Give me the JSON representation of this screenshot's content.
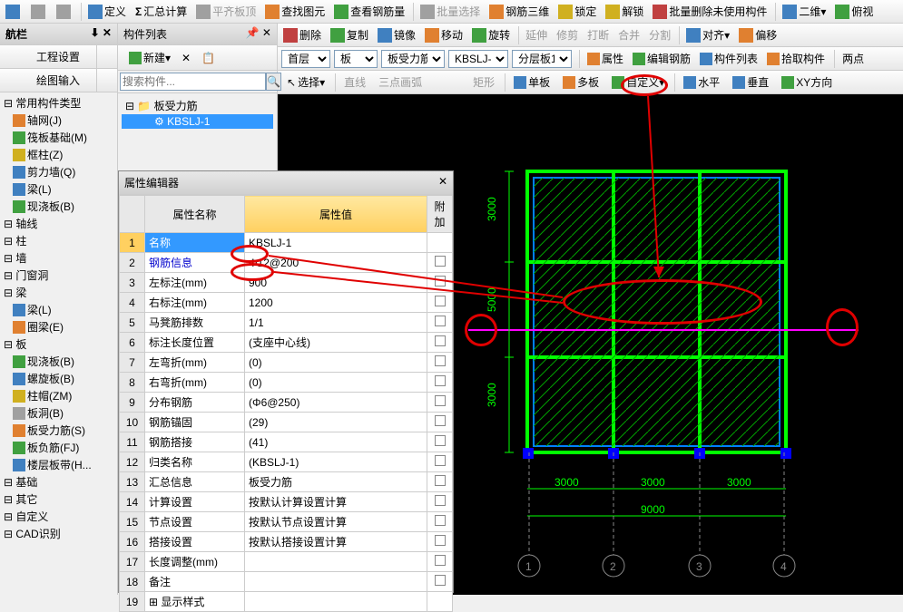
{
  "top_toolbar": {
    "items": [
      "定义",
      "汇总计算",
      "平齐板顶",
      "查找图元",
      "查看钢筋量",
      "批量选择",
      "钢筋三维",
      "锁定",
      "解锁",
      "批量删除未使用构件"
    ],
    "right_items": [
      "二维",
      "俯视"
    ]
  },
  "secondary_toolbar": {
    "items": [
      "删除",
      "复制",
      "镜像",
      "移动",
      "旋转",
      "延伸",
      "修剪",
      "打断",
      "合并",
      "分割",
      "对齐",
      "偏移"
    ]
  },
  "dropdown_bar": {
    "floor": "首层",
    "category": "板",
    "subcategory": "板受力筋",
    "component": "KBSLJ-1",
    "layer": "分层板1",
    "actions": [
      "属性",
      "编辑钢筋",
      "构件列表",
      "拾取构件",
      "两点"
    ]
  },
  "selection_bar": {
    "select": "选择",
    "items": [
      "直线",
      "三点画弧",
      "矩形",
      "单板",
      "多板",
      "自定义",
      "水平",
      "垂直",
      "XY方向"
    ]
  },
  "nav": {
    "title": "航栏",
    "btn1": "工程设置",
    "btn2": "绘图输入",
    "sections": {
      "common": "常用构件类型",
      "axis_grid": {
        "label": "轴网(J)"
      },
      "raft": {
        "label": "筏板基础(M)"
      },
      "frame_col": {
        "label": "框柱(Z)"
      },
      "shear_wall": {
        "label": "剪力墙(Q)"
      },
      "beam1": {
        "label": "梁(L)"
      },
      "cast_slab": {
        "label": "现浇板(B)"
      },
      "axis": "轴线",
      "column": "柱",
      "wall": "墙",
      "door": "门窗洞",
      "beam": "梁",
      "beam2": {
        "label": "梁(L)"
      },
      "ring_beam": {
        "label": "圈梁(E)"
      },
      "slab": "板",
      "cast_slab2": {
        "label": "现浇板(B)"
      },
      "spiral": {
        "label": "螺旋板(B)"
      },
      "col_cap": {
        "label": "柱帽(ZM)"
      },
      "slab_hole": {
        "label": "板洞(B)"
      },
      "slab_rebar": {
        "label": "板受力筋(S)"
      },
      "slab_neg": {
        "label": "板负筋(FJ)"
      },
      "floor_strip": {
        "label": "楼层板带(H..."
      },
      "foundation": "基础",
      "other": "其它",
      "custom": "自定义",
      "cad": "CAD识别"
    }
  },
  "component_panel": {
    "title": "构件列表",
    "new_btn": "新建",
    "search_placeholder": "搜索构件...",
    "root": "板受力筋",
    "item": "KBSLJ-1"
  },
  "prop_editor": {
    "title": "属性编辑器",
    "headers": {
      "name": "属性名称",
      "value": "属性值",
      "attach": "附加"
    },
    "rows": [
      {
        "n": "1",
        "name": "名称",
        "value": "KBSLJ-1",
        "sel": true
      },
      {
        "n": "2",
        "name": "钢筋信息",
        "value": "Φ12@200",
        "blue": true
      },
      {
        "n": "3",
        "name": "左标注(mm)",
        "value": "900"
      },
      {
        "n": "4",
        "name": "右标注(mm)",
        "value": "1200"
      },
      {
        "n": "5",
        "name": "马凳筋排数",
        "value": "1/1"
      },
      {
        "n": "6",
        "name": "标注长度位置",
        "value": "(支座中心线)"
      },
      {
        "n": "7",
        "name": "左弯折(mm)",
        "value": "(0)"
      },
      {
        "n": "8",
        "name": "右弯折(mm)",
        "value": "(0)"
      },
      {
        "n": "9",
        "name": "分布钢筋",
        "value": "(Φ6@250)"
      },
      {
        "n": "10",
        "name": "钢筋锚固",
        "value": "(29)"
      },
      {
        "n": "11",
        "name": "钢筋搭接",
        "value": "(41)"
      },
      {
        "n": "12",
        "name": "归类名称",
        "value": "(KBSLJ-1)"
      },
      {
        "n": "13",
        "name": "汇总信息",
        "value": "板受力筋"
      },
      {
        "n": "14",
        "name": "计算设置",
        "value": "按默认计算设置计算"
      },
      {
        "n": "15",
        "name": "节点设置",
        "value": "按默认节点设置计算"
      },
      {
        "n": "16",
        "name": "搭接设置",
        "value": "按默认搭接设置计算"
      },
      {
        "n": "17",
        "name": "长度调整(mm)",
        "value": ""
      },
      {
        "n": "18",
        "name": "备注",
        "value": ""
      },
      {
        "n": "19",
        "name": "显示样式",
        "value": "",
        "expand": true
      }
    ]
  },
  "viewport": {
    "grid": {
      "outer_color": "#00ff00",
      "inner_color": "#0080ff",
      "hatch_color": "#00ff00",
      "magenta_color": "#ff00ff",
      "dim_color": "#00ff00",
      "axis_labels": [
        "1",
        "2",
        "3",
        "4"
      ],
      "h_dims": [
        "3000",
        "3000",
        "3000"
      ],
      "v_dims": [
        "3000",
        "5000",
        "3000"
      ],
      "total_h": "9000"
    }
  }
}
